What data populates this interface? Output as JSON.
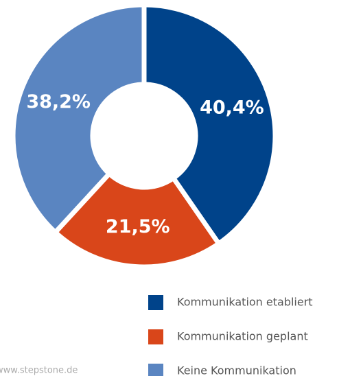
{
  "chart_data": {
    "type": "donut",
    "categories": [
      "Kommunikation etabliert",
      "Kommunikation geplant",
      "Keine Kommunikation"
    ],
    "values": [
      40.4,
      21.5,
      38.2
    ],
    "value_labels": [
      "40,4%",
      "21,5%",
      "38,2%"
    ],
    "colors": [
      "#00438a",
      "#d9461a",
      "#5a85c1"
    ],
    "source": "www.stepstone.de"
  }
}
